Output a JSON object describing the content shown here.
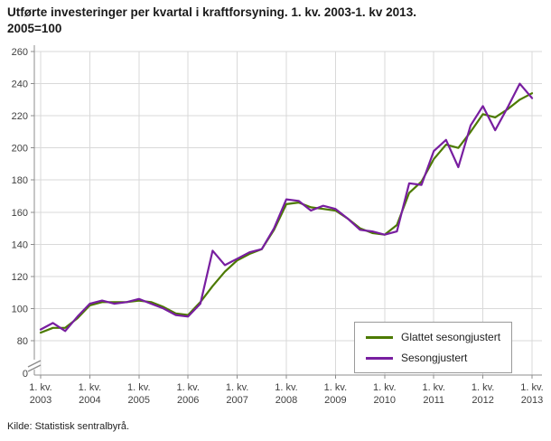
{
  "title": {
    "line1": "Utførte investeringer per kvartal i kraftforsyning. 1. kv. 2003-1. kv 2013.",
    "line2": "2005=100"
  },
  "source": "Kilde: Statistisk sentralbyrå.",
  "legend": {
    "items": [
      {
        "label": "Glattet sesongjustert",
        "color": "#4C7A00"
      },
      {
        "label": "Sesongjustert",
        "color": "#781EA0"
      }
    ]
  },
  "chart_data": {
    "type": "line",
    "title": "Utførte investeringer per kvartal i kraftforsyning. 1. kv. 2003-1. kv 2013. 2005=100",
    "ylim": [
      80,
      260
    ],
    "y_ticks": [
      80,
      100,
      120,
      140,
      160,
      180,
      200,
      220,
      240,
      260
    ],
    "y_zero_label": "0",
    "axis_break": true,
    "grid": true,
    "legend_position": "lower-right",
    "x_tick_quarter_label": "1. kv.",
    "x_tick_years": [
      "2003",
      "2004",
      "2005",
      "2006",
      "2007",
      "2008",
      "2009",
      "2010",
      "2011",
      "2012",
      "2013"
    ],
    "categories": [
      "2003K1",
      "2003K2",
      "2003K3",
      "2003K4",
      "2004K1",
      "2004K2",
      "2004K3",
      "2004K4",
      "2005K1",
      "2005K2",
      "2005K3",
      "2005K4",
      "2006K1",
      "2006K2",
      "2006K3",
      "2006K4",
      "2007K1",
      "2007K2",
      "2007K3",
      "2007K4",
      "2008K1",
      "2008K2",
      "2008K3",
      "2008K4",
      "2009K1",
      "2009K2",
      "2009K3",
      "2009K4",
      "2010K1",
      "2010K2",
      "2010K3",
      "2010K4",
      "2011K1",
      "2011K2",
      "2011K3",
      "2011K4",
      "2012K1",
      "2012K2",
      "2012K3",
      "2012K4",
      "2013K1"
    ],
    "series": [
      {
        "name": "Glattet sesongjustert",
        "color": "#4C7A00",
        "values": [
          85,
          88,
          88,
          94,
          102,
          104,
          104,
          104,
          105,
          104,
          101,
          97,
          96,
          104,
          114,
          123,
          130,
          134,
          137,
          149,
          165,
          166,
          163,
          162,
          161,
          156,
          150,
          147,
          146,
          152,
          172,
          179,
          193,
          202,
          200,
          210,
          221,
          219,
          224,
          230,
          234
        ]
      },
      {
        "name": "Sesongjustert",
        "color": "#781EA0",
        "values": [
          87,
          91,
          86,
          95,
          103,
          105,
          103,
          104,
          106,
          103,
          100,
          96,
          95,
          103,
          136,
          127,
          131,
          135,
          137,
          150,
          168,
          167,
          161,
          164,
          162,
          156,
          149,
          148,
          146,
          148,
          178,
          177,
          198,
          205,
          188,
          214,
          226,
          211,
          225,
          240,
          231
        ]
      }
    ]
  }
}
